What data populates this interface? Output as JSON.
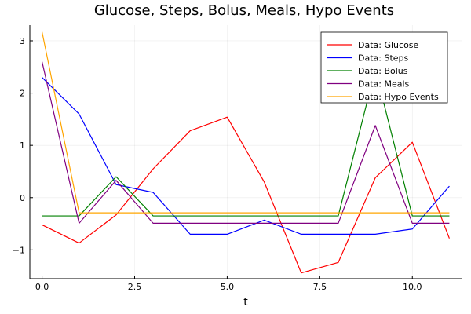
{
  "chart_data": {
    "type": "line",
    "title": "Glucose, Steps, Bolus, Meals, Hypo Events",
    "xlabel": "t",
    "ylabel": "",
    "xlim": [
      -0.33,
      11.33
    ],
    "ylim": [
      -1.55,
      3.3
    ],
    "xticks": [
      0,
      2.5,
      5,
      7.5,
      10
    ],
    "xtick_labels": [
      "0.0",
      "2.5",
      "5.0",
      "7.5",
      "10.0"
    ],
    "yticks": [
      -1,
      0,
      1,
      2,
      3
    ],
    "ytick_labels": [
      "−1",
      "0",
      "1",
      "2",
      "3"
    ],
    "grid": true,
    "legend_position": "top-right",
    "x": [
      0,
      1,
      2,
      3,
      4,
      5,
      6,
      7,
      8,
      9,
      10,
      11
    ],
    "series": [
      {
        "name": "Data: Glucose",
        "color": "#ff0000",
        "values": [
          -0.52,
          -0.87,
          -0.33,
          0.55,
          1.28,
          1.54,
          0.3,
          -1.44,
          -1.24,
          0.38,
          1.06,
          -0.78
        ]
      },
      {
        "name": "Data: Steps",
        "color": "#0000ff",
        "values": [
          2.3,
          1.6,
          0.25,
          0.1,
          -0.7,
          -0.7,
          -0.43,
          -0.7,
          -0.7,
          -0.7,
          -0.6,
          0.22
        ]
      },
      {
        "name": "Data: Bolus",
        "color": "#008000",
        "values": [
          -0.35,
          -0.35,
          0.4,
          -0.35,
          -0.35,
          -0.35,
          -0.35,
          -0.35,
          -0.35,
          2.45,
          -0.35,
          -0.35
        ]
      },
      {
        "name": "Data: Meals",
        "color": "#800080",
        "values": [
          2.6,
          -0.49,
          0.33,
          -0.49,
          -0.49,
          -0.49,
          -0.49,
          -0.49,
          -0.49,
          1.38,
          -0.49,
          -0.49
        ]
      },
      {
        "name": "Data: Hypo Events",
        "color": "#ffa500",
        "values": [
          3.17,
          -0.29,
          -0.29,
          -0.29,
          -0.29,
          -0.29,
          -0.29,
          -0.29,
          -0.29,
          -0.29,
          -0.29,
          -0.29
        ]
      }
    ]
  }
}
